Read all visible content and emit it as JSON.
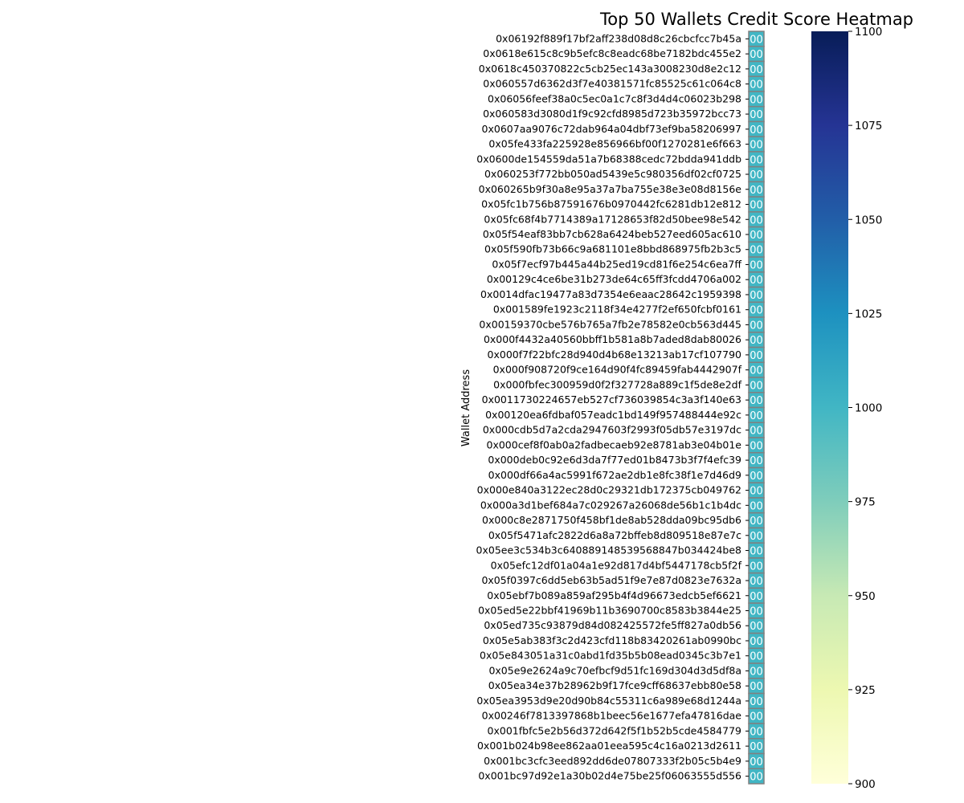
{
  "chart_data": {
    "type": "heatmap",
    "title": "Top 50 Wallets Credit Score Heatmap",
    "ylabel": "Wallet Address",
    "xlabel": "",
    "colormap": "YlGnBu",
    "cell_annotation": "00",
    "colorbar": {
      "vmin": 900,
      "vmax": 1100,
      "ticks": [
        900,
        925,
        950,
        975,
        1000,
        1025,
        1050,
        1075,
        1100
      ]
    },
    "rows": [
      "0x06192f889f17bf2aff238d08d8c26cbcfcc7b45a",
      "0x0618e615c8c9b5efc8c8eadc68be7182bdc455e2",
      "0x0618c450370822c5cb25ec143a3008230d8e2c12",
      "0x060557d6362d3f7e40381571fc85525c61c064c8",
      "0x06056feef38a0c5ec0a1c7c8f3d4d4c06023b298",
      "0x060583d3080d1f9c92cfd8985d723b35972bcc73",
      "0x0607aa9076c72dab964a04dbf73ef9ba58206997",
      "0x05fe433fa225928e856966bf00f1270281e6f663",
      "0x0600de154559da51a7b68388cedc72bdda941ddb",
      "0x060253f772bb050ad5439e5c980356df02cf0725",
      "0x060265b9f30a8e95a37a7ba755e38e3e08d8156e",
      "0x05fc1b756b87591676b0970442fc6281db12e812",
      "0x05fc68f4b7714389a17128653f82d50bee98e542",
      "0x05f54eaf83bb7cb628a6424beb527eed605ac610",
      "0x05f590fb73b66c9a681101e8bbd868975fb2b3c5",
      "0x05f7ecf97b445a44b25ed19cd81f6e254c6ea7ff",
      "0x00129c4ce6be31b273de64c65ff3fcdd4706a002",
      "0x0014dfac19477a83d7354e6eaac28642c1959398",
      "0x001589fe1923c2118f34e4277f2ef650fcbf0161",
      "0x00159370cbe576b765a7fb2e78582e0cb563d445",
      "0x000f4432a40560bbff1b581a8b7aded8dab80026",
      "0x000f7f22bfc28d940d4b68e13213ab17cf107790",
      "0x000f908720f9ce164d90f4fc89459fab4442907f",
      "0x000fbfec300959d0f2f327728a889c1f5de8e2df",
      "0x0011730224657eb527cf736039854c3a3f140e63",
      "0x00120ea6fdbaf057eadc1bd149f957488444e92c",
      "0x000cdb5d7a2cda2947603f2993f05db57e3197dc",
      "0x000cef8f0ab0a2fadbecaeb92e8781ab3e04b01e",
      "0x000deb0c92e6d3da7f77ed01b8473b3f7f4efc39",
      "0x000df66a4ac5991f672ae2db1e8fc38f1e7d46d9",
      "0x000e840a3122ec28d0c29321db172375cb049762",
      "0x000a3d1bef684a7c029267a26068de56b1c1b4dc",
      "0x000c8e2871750f458bf1de8ab528dda09bc95db6",
      "0x05f5471afc2822d6a8a72bffeb8d809518e87e7c",
      "0x05ee3c534b3c640889148539568847b034424be8",
      "0x05efc12df01a04a1e92d817d4bf5447178cb5f2f",
      "0x05f0397c6dd5eb63b5ad51f9e7e87d0823e7632a",
      "0x05ebf7b089a859af295b4f4d96673edcb5ef6621",
      "0x05ed5e22bbf41969b11b3690700c8583b3844e25",
      "0x05ed735c93879d84d082425572fe5ff827a0db56",
      "0x05e5ab383f3c2d423cfd118b83420261ab0990bc",
      "0x05e843051a31c0abd1fd35b5b08ead0345c3b7e1",
      "0x05e9e2624a9c70efbcf9d51fc169d304d3d5df8a",
      "0x05ea34e37b28962b9f17fce9cff68637ebb80e58",
      "0x05ea3953d9e20d90b84c55311c6a989e68d1244a",
      "0x00246f7813397868b1beec56e1677efa47816dae",
      "0x001fbfc5e2b56d372d642f5f1b52b5cde4584779",
      "0x001b024b98ee862aa01eea595c4c16a0213d2611",
      "0x001bc3cfc3eed892dd6de07807333f2b05c5b4e9",
      "0x001bc97d92e1a30b02d4e75be25f06063555d556"
    ],
    "values": [
      1000,
      1000,
      1000,
      1000,
      1000,
      1000,
      1000,
      1000,
      1000,
      1000,
      1000,
      1000,
      1000,
      1000,
      1000,
      1000,
      1000,
      1000,
      1000,
      1000,
      1000,
      1000,
      1000,
      1000,
      1000,
      1000,
      1000,
      1000,
      1000,
      1000,
      1000,
      1000,
      1000,
      1000,
      1000,
      1000,
      1000,
      1000,
      1000,
      1000,
      1000,
      1000,
      1000,
      1000,
      1000,
      1000,
      1000,
      1000,
      1000,
      1000
    ]
  }
}
